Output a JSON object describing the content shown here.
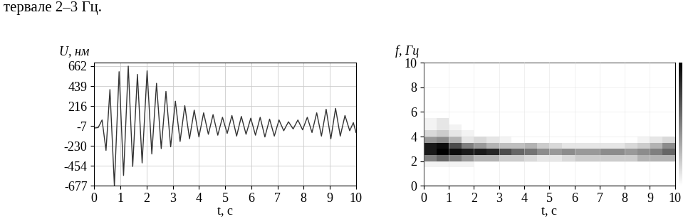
{
  "text": "тервале 2–3 Гц.",
  "chart_data": [
    {
      "type": "line",
      "y_label": "U, нм",
      "x_label": "t, с",
      "color": "#333333",
      "grid": true,
      "x": [
        0,
        0.15,
        0.3,
        0.45,
        0.6,
        0.77,
        0.95,
        1.12,
        1.3,
        1.47,
        1.65,
        1.83,
        2.02,
        2.2,
        2.38,
        2.56,
        2.74,
        2.92,
        3.1,
        3.28,
        3.46,
        3.64,
        3.82,
        4.0,
        4.18,
        4.36,
        4.54,
        4.72,
        4.9,
        5.08,
        5.26,
        5.44,
        5.62,
        5.8,
        5.98,
        6.16,
        6.34,
        6.52,
        6.7,
        6.88,
        7.06,
        7.24,
        7.42,
        7.6,
        7.78,
        7.96,
        8.14,
        8.32,
        8.5,
        8.68,
        8.86,
        9.04,
        9.22,
        9.4,
        9.58,
        9.76,
        9.9,
        10
      ],
      "values": [
        -30,
        -25,
        60,
        -280,
        400,
        -677,
        600,
        -560,
        662,
        -460,
        570,
        -420,
        610,
        -320,
        470,
        -260,
        380,
        -240,
        270,
        -180,
        220,
        -150,
        170,
        -130,
        140,
        -100,
        120,
        -110,
        90,
        -90,
        110,
        -120,
        100,
        -100,
        80,
        -110,
        90,
        -130,
        70,
        -120,
        60,
        -60,
        40,
        -40,
        60,
        -50,
        90,
        -80,
        140,
        -120,
        180,
        -150,
        190,
        -120,
        110,
        -60,
        30,
        -80
      ],
      "xlim": [
        0,
        10
      ],
      "xticks": [
        0,
        1,
        2,
        3,
        4,
        5,
        6,
        7,
        8,
        9,
        10
      ],
      "ylim": [
        -677,
        700
      ],
      "yticks": [
        -677,
        -454,
        -230,
        -7,
        216,
        439,
        662
      ]
    },
    {
      "type": "heatmap",
      "y_label": "f, Гц",
      "x_label": "t, с",
      "grid": true,
      "x_edges": [
        0,
        0.5,
        1,
        1.5,
        2,
        2.5,
        3,
        3.5,
        4,
        4.5,
        5,
        5.5,
        6,
        6.5,
        7,
        7.5,
        8,
        8.5,
        9,
        9.5,
        10
      ],
      "y_edges": [
        0,
        0.5,
        1,
        1.5,
        2,
        2.5,
        3,
        3.5,
        4,
        4.5,
        5,
        5.5,
        6,
        6.5,
        7,
        7.5,
        8,
        8.5,
        9,
        9.5,
        10
      ],
      "cells": [
        [
          0,
          0,
          0,
          0,
          0,
          0,
          0,
          0,
          0,
          0,
          0,
          0,
          0,
          0,
          0,
          0,
          0,
          0,
          0,
          0
        ],
        [
          0,
          0,
          0,
          0,
          0,
          0,
          0,
          0,
          0,
          0,
          0,
          0,
          0,
          0,
          0,
          0,
          0,
          0,
          0,
          0
        ],
        [
          0,
          0,
          0,
          0,
          0,
          0,
          0,
          0,
          0,
          0,
          0,
          0,
          0,
          0,
          0,
          0,
          0,
          0,
          0,
          0
        ],
        [
          0.05,
          0.05,
          0.05,
          0.05,
          0,
          0,
          0,
          0,
          0,
          0,
          0,
          0,
          0,
          0,
          0,
          0,
          0,
          0,
          0,
          0
        ],
        [
          0.5,
          0.6,
          0.5,
          0.4,
          0.3,
          0.3,
          0.2,
          0.2,
          0.15,
          0.1,
          0.1,
          0.15,
          0.2,
          0.2,
          0.2,
          0.2,
          0.2,
          0.3,
          0.3,
          0.3
        ],
        [
          0.9,
          1.0,
          0.95,
          0.9,
          0.9,
          0.85,
          0.7,
          0.6,
          0.55,
          0.45,
          0.4,
          0.45,
          0.4,
          0.4,
          0.45,
          0.45,
          0.4,
          0.45,
          0.5,
          0.6
        ],
        [
          0.9,
          0.95,
          0.7,
          0.5,
          0.4,
          0.3,
          0.25,
          0.25,
          0.3,
          0.2,
          0.15,
          0.1,
          0.1,
          0.1,
          0.1,
          0.1,
          0.15,
          0.2,
          0.3,
          0.45
        ],
        [
          0.4,
          0.45,
          0.3,
          0.1,
          0.15,
          0.1,
          0.05,
          0,
          0,
          0,
          0,
          0,
          0,
          0,
          0,
          0,
          0,
          0.05,
          0.1,
          0.15
        ],
        [
          0.15,
          0.2,
          0.1,
          0.05,
          0,
          0,
          0,
          0,
          0,
          0,
          0,
          0,
          0,
          0,
          0,
          0,
          0,
          0,
          0,
          0
        ],
        [
          0.05,
          0.1,
          0.05,
          0,
          0,
          0,
          0,
          0,
          0,
          0,
          0,
          0,
          0,
          0,
          0,
          0,
          0,
          0,
          0,
          0
        ],
        [
          0.05,
          0.1,
          0,
          0,
          0,
          0,
          0,
          0,
          0,
          0,
          0,
          0,
          0,
          0,
          0,
          0,
          0,
          0,
          0,
          0
        ],
        [
          0,
          0,
          0,
          0,
          0,
          0,
          0,
          0,
          0,
          0,
          0,
          0,
          0,
          0,
          0,
          0,
          0,
          0,
          0,
          0
        ],
        [
          0,
          0,
          0,
          0,
          0,
          0,
          0,
          0,
          0,
          0,
          0,
          0,
          0,
          0,
          0,
          0,
          0,
          0,
          0,
          0
        ],
        [
          0,
          0,
          0,
          0,
          0,
          0,
          0,
          0,
          0,
          0,
          0,
          0,
          0,
          0,
          0,
          0,
          0,
          0,
          0,
          0
        ],
        [
          0,
          0,
          0,
          0,
          0,
          0,
          0,
          0,
          0,
          0,
          0,
          0,
          0,
          0,
          0,
          0,
          0,
          0,
          0,
          0
        ],
        [
          0,
          0,
          0,
          0,
          0,
          0,
          0,
          0,
          0,
          0,
          0,
          0,
          0,
          0,
          0,
          0,
          0,
          0,
          0,
          0
        ],
        [
          0,
          0,
          0,
          0,
          0,
          0,
          0,
          0,
          0,
          0,
          0,
          0,
          0,
          0,
          0,
          0,
          0,
          0,
          0,
          0
        ],
        [
          0,
          0,
          0,
          0,
          0,
          0,
          0,
          0,
          0,
          0,
          0,
          0,
          0,
          0,
          0,
          0,
          0,
          0,
          0,
          0
        ],
        [
          0,
          0,
          0,
          0,
          0,
          0,
          0,
          0,
          0,
          0,
          0,
          0,
          0,
          0,
          0,
          0,
          0,
          0,
          0,
          0
        ],
        [
          0,
          0,
          0,
          0,
          0,
          0,
          0,
          0,
          0,
          0,
          0,
          0,
          0,
          0,
          0,
          0,
          0,
          0,
          0,
          0
        ]
      ],
      "colorbar_range": [
        0,
        1
      ],
      "xlim": [
        0,
        10
      ],
      "xticks": [
        0,
        1,
        2,
        3,
        4,
        5,
        6,
        7,
        8,
        9,
        10
      ],
      "ylim": [
        0,
        10
      ],
      "yticks": [
        0,
        2,
        4,
        6,
        8,
        10
      ]
    }
  ]
}
